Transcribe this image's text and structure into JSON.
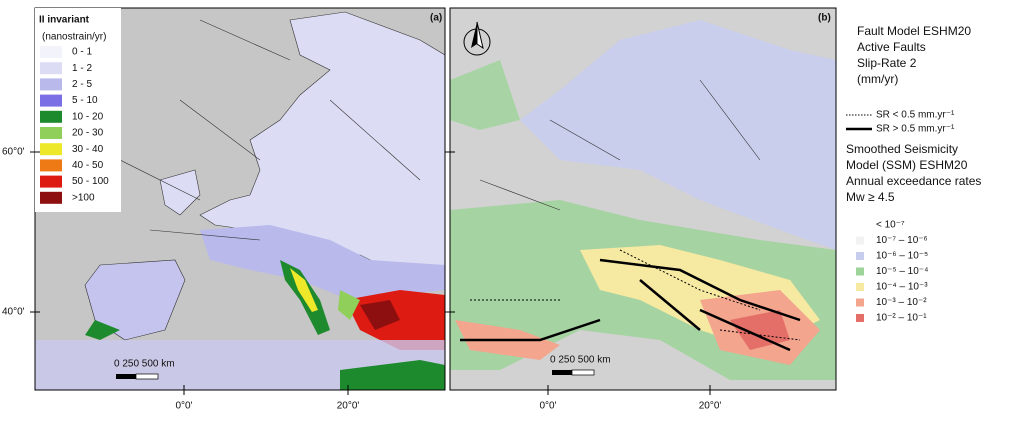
{
  "panels": [
    {
      "label": "(a)",
      "legend": {
        "title": "II invariant",
        "unit": "(nanostrain/yr)",
        "items": [
          {
            "label": "0 - 1",
            "color": "#f3f3fb"
          },
          {
            "label": "1 - 2",
            "color": "#dcdcf5"
          },
          {
            "label": "2 - 5",
            "color": "#b9b9ec"
          },
          {
            "label": "5 - 10",
            "color": "#7b6fe6"
          },
          {
            "label": "10 - 20",
            "color": "#1e8a2e"
          },
          {
            "label": "20 - 30",
            "color": "#8fcf5a"
          },
          {
            "label": "30 - 40",
            "color": "#eee82a"
          },
          {
            "label": "40 - 50",
            "color": "#ee7a16"
          },
          {
            "label": "50 - 100",
            "color": "#de1b12"
          },
          {
            "label": ">100",
            "color": "#8e0f0f"
          }
        ]
      },
      "scale_bar": "0    250  500 km",
      "lat_labels": [
        "60°0'",
        "40°0'"
      ],
      "lon_labels": [
        "0°0'",
        "20°0'"
      ]
    },
    {
      "label": "(b)",
      "scale_bar": "0    250  500 km",
      "lon_labels": [
        "0°0'",
        "20°0'"
      ]
    }
  ],
  "legend": {
    "fault_title": [
      "Fault Model ESHM20",
      "Active Faults",
      "Slip-Rate 2",
      "(mm/yr)"
    ],
    "fault_items": [
      {
        "label": "SR < 0.5 mm.yr⁻¹",
        "style": "dotted"
      },
      {
        "label": "SR > 0.5 mm.yr⁻¹",
        "style": "solid"
      }
    ],
    "ssm_title": [
      "Smoothed Seismicity",
      "Model (SSM) ESHM20",
      "Annual exceedance rates",
      "Mw ≥ 4.5"
    ],
    "ssm_items": [
      {
        "label": "< 10⁻⁷",
        "color": "#ffffff"
      },
      {
        "label": "10⁻⁷ – 10⁻⁶",
        "color": "#f2f2f2"
      },
      {
        "label": "10⁻⁶ – 10⁻⁵",
        "color": "#c6cdee"
      },
      {
        "label": "10⁻⁵ – 10⁻⁴",
        "color": "#9dd49a"
      },
      {
        "label": "10⁻⁴ – 10⁻³",
        "color": "#f6e9a2"
      },
      {
        "label": "10⁻³ – 10⁻²",
        "color": "#f3a58e"
      },
      {
        "label": "10⁻² – 10⁻¹",
        "color": "#e46f68"
      }
    ]
  }
}
